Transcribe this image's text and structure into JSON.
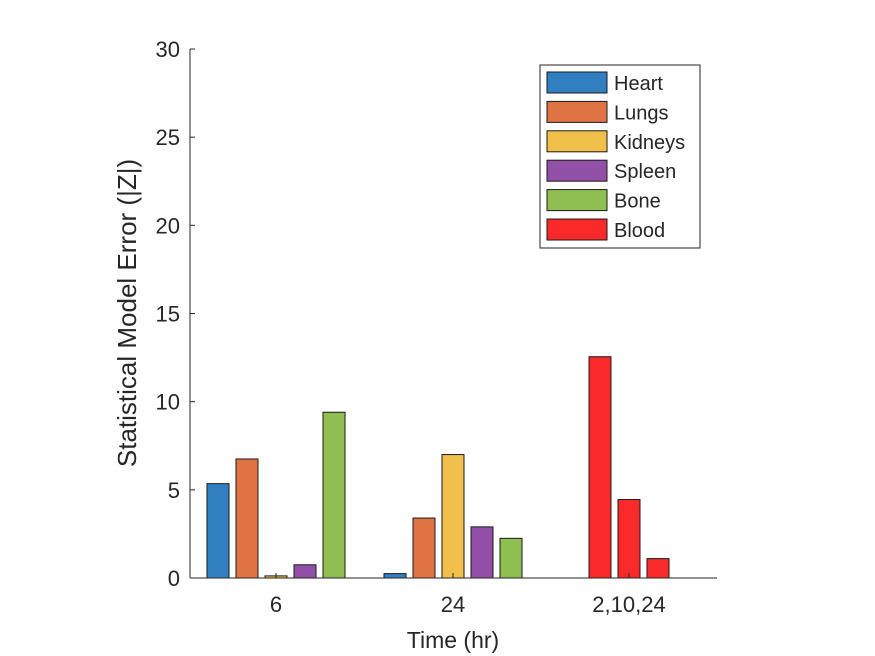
{
  "chart_data": {
    "type": "bar",
    "xlabel": "Time (hr)",
    "ylabel": "Statistical Model Error (|Z|)",
    "ylim": [
      0,
      30
    ],
    "yticks": [
      0,
      5,
      10,
      15,
      20,
      25,
      30
    ],
    "grid": false,
    "legend_position": "top-right",
    "groups": [
      {
        "label": "6",
        "bars": [
          {
            "series": "Heart",
            "value": 5.35
          },
          {
            "series": "Lungs",
            "value": 6.75
          },
          {
            "series": "Kidneys",
            "value": 0.12
          },
          {
            "series": "Spleen",
            "value": 0.75
          },
          {
            "series": "Bone",
            "value": 9.4
          }
        ]
      },
      {
        "label": "24",
        "bars": [
          {
            "series": "Heart",
            "value": 0.25
          },
          {
            "series": "Lungs",
            "value": 3.4
          },
          {
            "series": "Kidneys",
            "value": 7.0
          },
          {
            "series": "Spleen",
            "value": 2.9
          },
          {
            "series": "Bone",
            "value": 2.25
          }
        ]
      },
      {
        "label": "2,10,24",
        "bars": [
          {
            "series": "Blood",
            "value": 12.55
          },
          {
            "series": "Blood",
            "value": 4.45
          },
          {
            "series": "Blood",
            "value": 1.1
          }
        ]
      }
    ],
    "series": [
      {
        "name": "Heart",
        "color": "#2f7fc1"
      },
      {
        "name": "Lungs",
        "color": "#e07343"
      },
      {
        "name": "Kidneys",
        "color": "#f0c04a"
      },
      {
        "name": "Spleen",
        "color": "#9150a6"
      },
      {
        "name": "Bone",
        "color": "#8fbf50"
      },
      {
        "name": "Blood",
        "color": "#fa2a2a"
      }
    ]
  }
}
